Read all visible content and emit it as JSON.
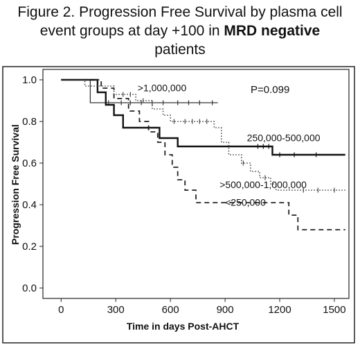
{
  "title": {
    "line1": "Figure 2. Progression Free Survival by plasma cell",
    "line2_pre": "event groups at day +100 in ",
    "line2_bold": "MRD negative",
    "line3": "patients"
  },
  "chart_data": {
    "type": "line",
    "subtype": "kaplan-meier",
    "xlabel": "Time in days Post-AHCT",
    "ylabel": "Progression Free Survival",
    "xlim": [
      -100,
      1580
    ],
    "ylim": [
      -0.05,
      1.05
    ],
    "xticks": [
      0,
      300,
      600,
      900,
      1200,
      1500
    ],
    "yticks": [
      0.0,
      0.2,
      0.4,
      0.6,
      0.8,
      1.0
    ],
    "ytick_labels": [
      "0.0",
      "0.2",
      "0.4",
      "0.6",
      "0.8",
      "1.0"
    ],
    "grid": false,
    "p_value_text": "P=0.099",
    "series": [
      {
        "name": ">1,000,000",
        "style": "solid-thin",
        "color": "#333333",
        "steps": [
          [
            0,
            1.0
          ],
          [
            160,
            1.0
          ],
          [
            160,
            0.89
          ],
          [
            860,
            0.89
          ]
        ],
        "censor": [
          260,
          330,
          380,
          440,
          500,
          560,
          640,
          700,
          760,
          830
        ]
      },
      {
        "name": "250,000-500,000",
        "style": "solid-thick",
        "color": "#111111",
        "steps": [
          [
            0,
            1.0
          ],
          [
            200,
            1.0
          ],
          [
            200,
            0.94
          ],
          [
            245,
            0.94
          ],
          [
            245,
            0.88
          ],
          [
            290,
            0.88
          ],
          [
            290,
            0.83
          ],
          [
            340,
            0.83
          ],
          [
            340,
            0.77
          ],
          [
            540,
            0.77
          ],
          [
            540,
            0.72
          ],
          [
            640,
            0.72
          ],
          [
            640,
            0.68
          ],
          [
            1160,
            0.68
          ],
          [
            1160,
            0.64
          ],
          [
            1560,
            0.64
          ]
        ],
        "censor": [
          1080,
          1110,
          1140,
          1200,
          1280,
          1400
        ]
      },
      {
        "name": ">500,000-1,000,000",
        "style": "dotted",
        "color": "#444444",
        "steps": [
          [
            0,
            1.0
          ],
          [
            130,
            1.0
          ],
          [
            130,
            0.97
          ],
          [
            290,
            0.97
          ],
          [
            290,
            0.93
          ],
          [
            410,
            0.93
          ],
          [
            410,
            0.9
          ],
          [
            500,
            0.9
          ],
          [
            500,
            0.86
          ],
          [
            560,
            0.86
          ],
          [
            560,
            0.83
          ],
          [
            600,
            0.83
          ],
          [
            600,
            0.8
          ],
          [
            840,
            0.8
          ],
          [
            840,
            0.77
          ],
          [
            880,
            0.77
          ],
          [
            880,
            0.7
          ],
          [
            920,
            0.7
          ],
          [
            920,
            0.64
          ],
          [
            990,
            0.64
          ],
          [
            990,
            0.6
          ],
          [
            1040,
            0.6
          ],
          [
            1040,
            0.56
          ],
          [
            1090,
            0.56
          ],
          [
            1090,
            0.53
          ],
          [
            1150,
            0.53
          ],
          [
            1150,
            0.5
          ],
          [
            1180,
            0.5
          ],
          [
            1180,
            0.47
          ],
          [
            1560,
            0.47
          ]
        ],
        "censor": [
          340,
          380,
          450,
          620,
          680,
          720,
          760,
          800,
          1000,
          1120,
          1330,
          1410,
          1500
        ]
      },
      {
        "name": "<250,000",
        "style": "dashed",
        "color": "#222222",
        "steps": [
          [
            0,
            1.0
          ],
          [
            220,
            1.0
          ],
          [
            220,
            0.96
          ],
          [
            290,
            0.96
          ],
          [
            290,
            0.91
          ],
          [
            370,
            0.91
          ],
          [
            370,
            0.85
          ],
          [
            430,
            0.85
          ],
          [
            430,
            0.8
          ],
          [
            480,
            0.8
          ],
          [
            480,
            0.75
          ],
          [
            530,
            0.75
          ],
          [
            530,
            0.7
          ],
          [
            570,
            0.7
          ],
          [
            570,
            0.64
          ],
          [
            610,
            0.64
          ],
          [
            610,
            0.58
          ],
          [
            640,
            0.58
          ],
          [
            640,
            0.52
          ],
          [
            680,
            0.52
          ],
          [
            680,
            0.47
          ],
          [
            740,
            0.47
          ],
          [
            740,
            0.41
          ],
          [
            1250,
            0.41
          ],
          [
            1250,
            0.35
          ],
          [
            1300,
            0.35
          ],
          [
            1300,
            0.28
          ],
          [
            1560,
            0.28
          ]
        ],
        "censor": []
      }
    ],
    "annotations": [
      {
        "text": ">1,000,000",
        "x": 420,
        "y": 0.945
      },
      {
        "text": "250,000-500,000",
        "x": 1020,
        "y": 0.705
      },
      {
        "text": ">500,000-1,000,000",
        "x": 870,
        "y": 0.48
      },
      {
        "text": "<250,000",
        "x": 900,
        "y": 0.395
      }
    ]
  }
}
